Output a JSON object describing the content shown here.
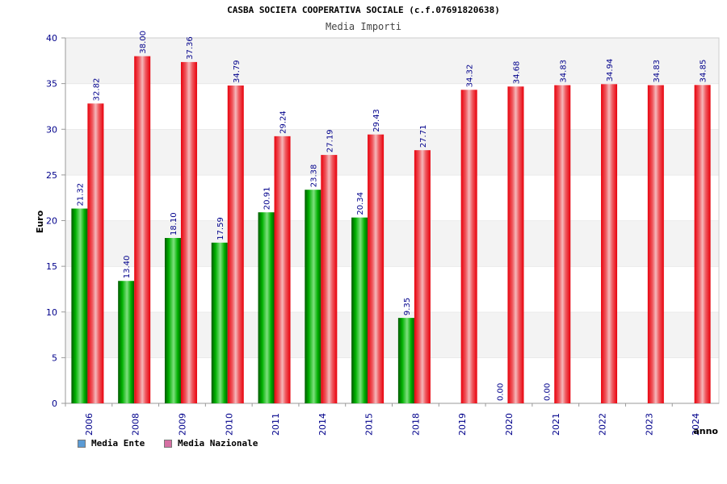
{
  "chart_data": {
    "type": "bar",
    "title": "CASBA SOCIETA COOPERATIVA SOCIALE (c.f.07691820638)",
    "subtitle": "Media Importi",
    "xlabel": "anno",
    "ylabel": "Euro",
    "ylim": [
      0,
      40
    ],
    "yticks": [
      0,
      5,
      10,
      15,
      20,
      25,
      30,
      35,
      40
    ],
    "grid": true,
    "legend_position": "bottom-left",
    "categories": [
      "2006",
      "2008",
      "2009",
      "2010",
      "2011",
      "2014",
      "2015",
      "2018",
      "2019",
      "2020",
      "2021",
      "2022",
      "2023",
      "2024"
    ],
    "series": [
      {
        "name": "Media Ente",
        "color": "#00a000",
        "legend_color": "#5b9bd5",
        "values": [
          21.32,
          13.4,
          18.1,
          17.59,
          20.91,
          23.38,
          20.34,
          9.35,
          null,
          0.0,
          0.0,
          null,
          null,
          null
        ],
        "labels": [
          "21.32",
          "13.40",
          "18.10",
          "17.59",
          "20.91",
          "23.38",
          "20.34",
          "9.35",
          "",
          "0.00",
          "0.00",
          "",
          "",
          ""
        ]
      },
      {
        "name": "Media Nazionale",
        "color": "#e8000b",
        "legend_color": "#d66fa3",
        "values": [
          32.82,
          38.0,
          37.36,
          34.79,
          29.24,
          27.19,
          29.43,
          27.71,
          34.32,
          34.68,
          34.83,
          34.94,
          34.83,
          34.85
        ],
        "labels": [
          "32.82",
          "38.00",
          "37.36",
          "34.79",
          "29.24",
          "27.19",
          "29.43",
          "27.71",
          "34.32",
          "34.68",
          "34.83",
          "34.94",
          "34.83",
          "34.85"
        ]
      }
    ],
    "colors": {
      "band_light": "#f3f3f3",
      "band_white": "#ffffff",
      "tick_text": "#00008b",
      "value_text": "#00008b"
    }
  }
}
